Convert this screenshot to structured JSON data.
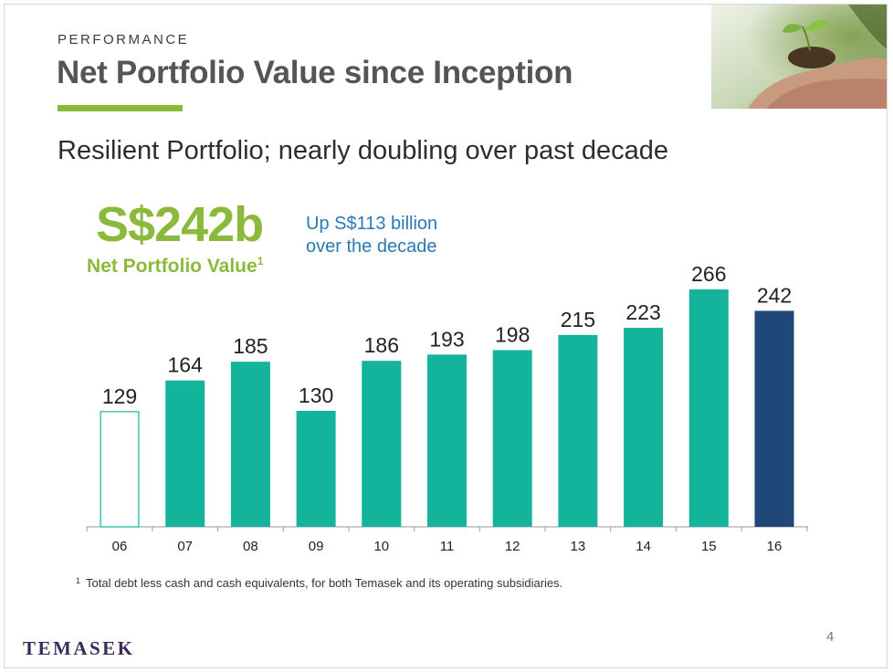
{
  "header": {
    "section": "PERFORMANCE",
    "title": "Net Portfolio Value since Inception"
  },
  "subtitle": "Resilient Portfolio; nearly doubling over past decade",
  "kpi": {
    "value": "S$242b",
    "label": "Net Portfolio Value",
    "footnote_marker": "1"
  },
  "callout": {
    "line1": "Up S$113 billion",
    "line2": "over the decade"
  },
  "footnote": {
    "marker": "1",
    "text": "Total debt less cash and cash equivalents, for both Temasek and its operating subsidiaries."
  },
  "logo": "TEMASEK",
  "page_number": "4",
  "photo_icon": "hands-holding-seedling-image",
  "colors": {
    "accent_green": "#8cb93b",
    "teal": "#14b39c",
    "navy": "#1f4778",
    "callout_blue": "#2a79b5"
  },
  "chart_data": {
    "type": "bar",
    "categories": [
      "06",
      "07",
      "08",
      "09",
      "10",
      "11",
      "12",
      "13",
      "14",
      "15",
      "16"
    ],
    "values": [
      129,
      164,
      185,
      130,
      186,
      193,
      198,
      215,
      223,
      266,
      242
    ],
    "value_labels": [
      "129",
      "164",
      "185",
      "130",
      "186",
      "193",
      "198",
      "215",
      "223",
      "266",
      "242"
    ],
    "bar_styles": [
      "outline",
      "teal",
      "teal",
      "teal",
      "teal",
      "teal",
      "teal",
      "teal",
      "teal",
      "teal",
      "navy"
    ],
    "ylim": [
      0,
      266
    ],
    "grid": false,
    "legend": "none"
  }
}
